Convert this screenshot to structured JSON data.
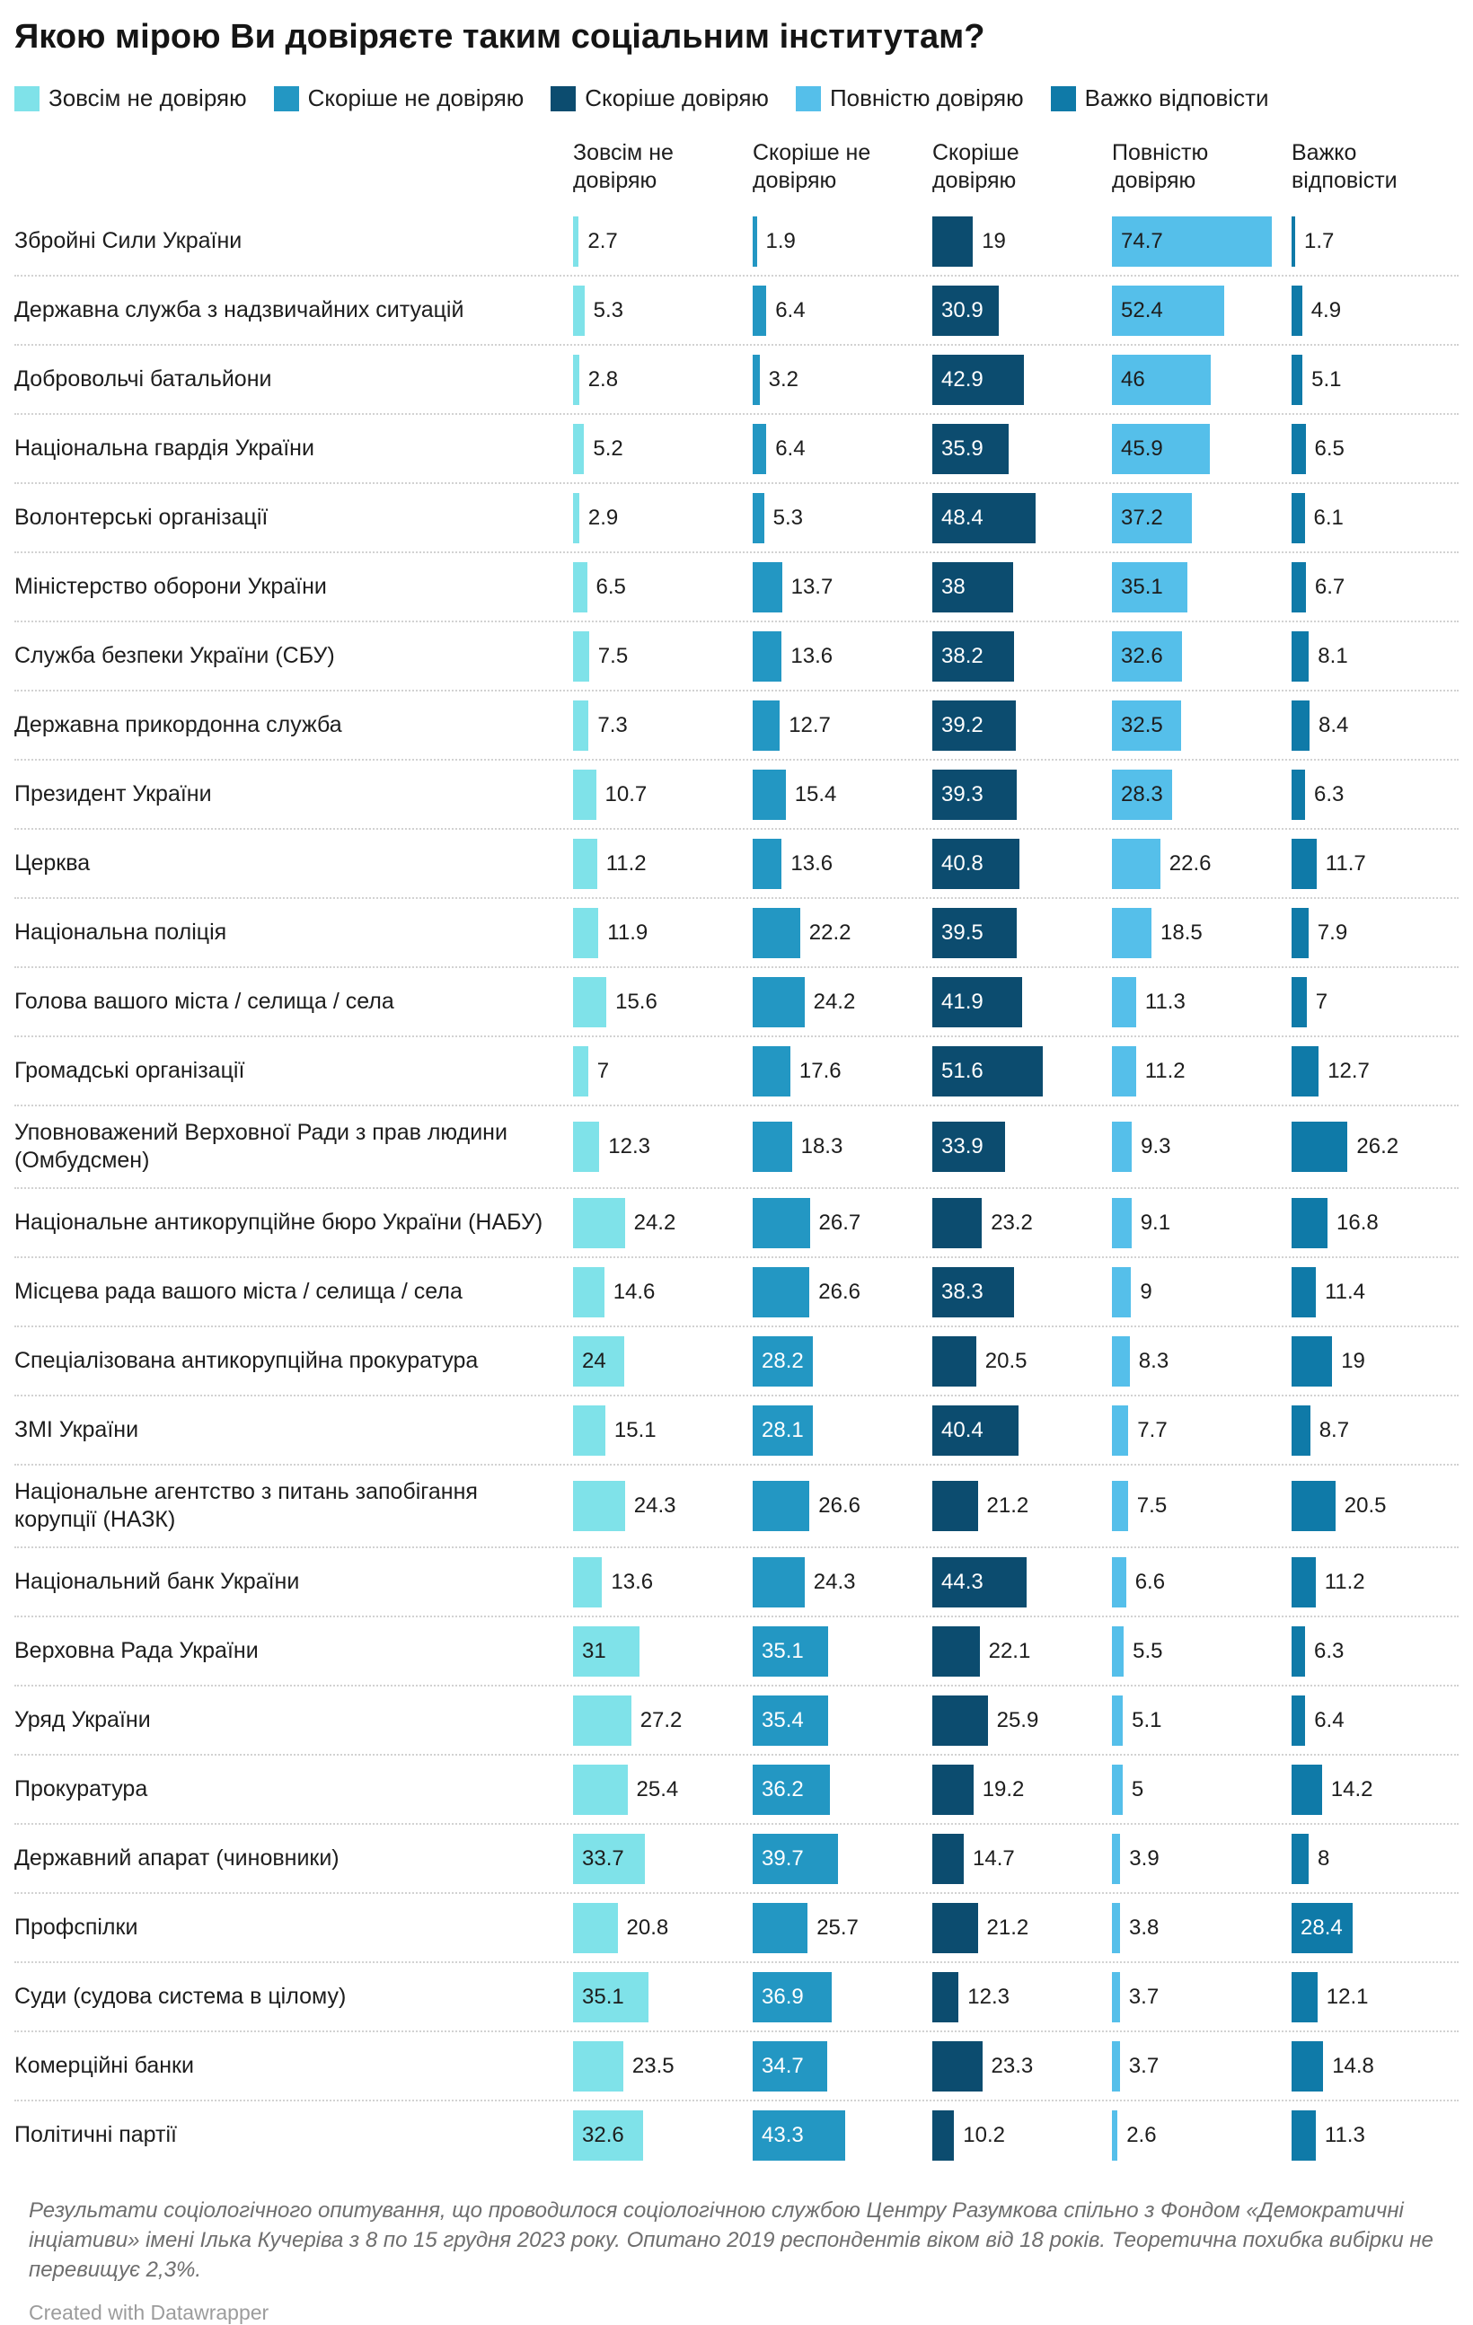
{
  "title": "Якою мірою Ви довіряєте таким соціальним інститутам?",
  "footer_note": "Результати соціологічного опитування, що проводилося соціологічною службою Центру Разумкова спільно з Фондом «Демократичні інціативи» імені Ілька Кучеріва з 8 по 15 грудня 2023 року. Опитано 2019 респондентів віком від 18 років. Теоретична похибка вибірки не перевищує 2,3%.",
  "credit": "Created with Datawrapper",
  "chart_data": {
    "type": "bar",
    "title": "Якою мірою Ви довіряєте таким соціальним інститутам?",
    "xlabel": "",
    "ylabel": "",
    "value_unit": "percent",
    "xlim": [
      0,
      84
    ],
    "grid": "off",
    "legend_position": "top",
    "row_separator": "dotted",
    "categories": [
      "Збройні Сили України",
      "Державна служба з надзвичайних ситуацій",
      "Добровольчі батальйони",
      "Національна гвардія України",
      "Волонтерські організації",
      "Міністерство оборони України",
      "Служба безпеки України (СБУ)",
      "Державна прикордонна служба",
      "Президент України",
      "Церква",
      "Національна поліція",
      "Голова вашого міста / селища / села",
      "Громадські організації",
      "Уповноважений Верховної Ради з прав людини (Омбудсмен)",
      "Національне антикорупційне бюро України (НАБУ)",
      "Місцева рада вашого міста / селища / села",
      "Спеціалізована антикорупційна прокуратура",
      "ЗМІ України",
      "Національне агентство з питань запобігання корупції (НАЗК)",
      "Національний банк України",
      "Верховна Рада України",
      "Уряд України",
      "Прокуратура",
      "Державний апарат (чиновники)",
      "Профспілки",
      "Суди (судова система в цілому)",
      "Комерційні банки",
      "Політичні партії"
    ],
    "series": [
      {
        "name": "Зовсім не довіряю",
        "color": "#7FE2E9",
        "inside_text_color": "#1d1d1d",
        "values": [
          2.7,
          5.3,
          2.8,
          5.2,
          2.9,
          6.5,
          7.5,
          7.3,
          10.7,
          11.2,
          11.9,
          15.6,
          7,
          12.3,
          24.2,
          14.6,
          24,
          15.1,
          24.3,
          13.6,
          31,
          27.2,
          25.4,
          33.7,
          20.8,
          35.1,
          23.5,
          32.6
        ],
        "label_inside": [
          0,
          0,
          0,
          0,
          0,
          0,
          0,
          0,
          0,
          0,
          0,
          0,
          0,
          0,
          0,
          0,
          1,
          0,
          0,
          0,
          1,
          0,
          0,
          1,
          0,
          1,
          0,
          1
        ]
      },
      {
        "name": "Скоріше не довіряю",
        "color": "#2397C3",
        "inside_text_color": "#ffffff",
        "values": [
          1.9,
          6.4,
          3.2,
          6.4,
          5.3,
          13.7,
          13.6,
          12.7,
          15.4,
          13.6,
          22.2,
          24.2,
          17.6,
          18.3,
          26.7,
          26.6,
          28.2,
          28.1,
          26.6,
          24.3,
          35.1,
          35.4,
          36.2,
          39.7,
          25.7,
          36.9,
          34.7,
          43.3
        ],
        "label_inside": [
          0,
          0,
          0,
          0,
          0,
          0,
          0,
          0,
          0,
          0,
          0,
          0,
          0,
          0,
          0,
          0,
          1,
          1,
          0,
          0,
          1,
          1,
          1,
          1,
          0,
          1,
          1,
          1
        ]
      },
      {
        "name": "Скоріше довіряю",
        "color": "#0C4C6F",
        "inside_text_color": "#ffffff",
        "values": [
          19,
          30.9,
          42.9,
          35.9,
          48.4,
          38,
          38.2,
          39.2,
          39.3,
          40.8,
          39.5,
          41.9,
          51.6,
          33.9,
          23.2,
          38.3,
          20.5,
          40.4,
          21.2,
          44.3,
          22.1,
          25.9,
          19.2,
          14.7,
          21.2,
          12.3,
          23.3,
          10.2
        ],
        "label_inside": [
          0,
          1,
          1,
          1,
          1,
          1,
          1,
          1,
          1,
          1,
          1,
          1,
          1,
          1,
          0,
          1,
          0,
          1,
          0,
          1,
          0,
          0,
          0,
          0,
          0,
          0,
          0,
          0
        ]
      },
      {
        "name": "Повністю довіряю",
        "color": "#55BFEA",
        "inside_text_color": "#1d1d1d",
        "values": [
          74.7,
          52.4,
          46,
          45.9,
          37.2,
          35.1,
          32.6,
          32.5,
          28.3,
          22.6,
          18.5,
          11.3,
          11.2,
          9.3,
          9.1,
          9,
          8.3,
          7.7,
          7.5,
          6.6,
          5.5,
          5.1,
          5,
          3.9,
          3.8,
          3.7,
          3.7,
          2.6
        ],
        "label_inside": [
          1,
          1,
          1,
          1,
          1,
          1,
          1,
          1,
          1,
          0,
          0,
          0,
          0,
          0,
          0,
          0,
          0,
          0,
          0,
          0,
          0,
          0,
          0,
          0,
          0,
          0,
          0,
          0
        ]
      },
      {
        "name": "Важко відповісти",
        "color": "#0F7AA8",
        "inside_text_color": "#ffffff",
        "values": [
          1.7,
          4.9,
          5.1,
          6.5,
          6.1,
          6.7,
          8.1,
          8.4,
          6.3,
          11.7,
          7.9,
          7,
          12.7,
          26.2,
          16.8,
          11.4,
          19,
          8.7,
          20.5,
          11.2,
          6.3,
          6.4,
          14.2,
          8,
          28.4,
          12.1,
          14.8,
          11.3
        ],
        "label_inside": [
          0,
          0,
          0,
          0,
          0,
          0,
          0,
          0,
          0,
          0,
          0,
          0,
          0,
          0,
          0,
          0,
          0,
          0,
          0,
          0,
          0,
          0,
          0,
          0,
          1,
          0,
          0,
          0
        ]
      }
    ]
  }
}
